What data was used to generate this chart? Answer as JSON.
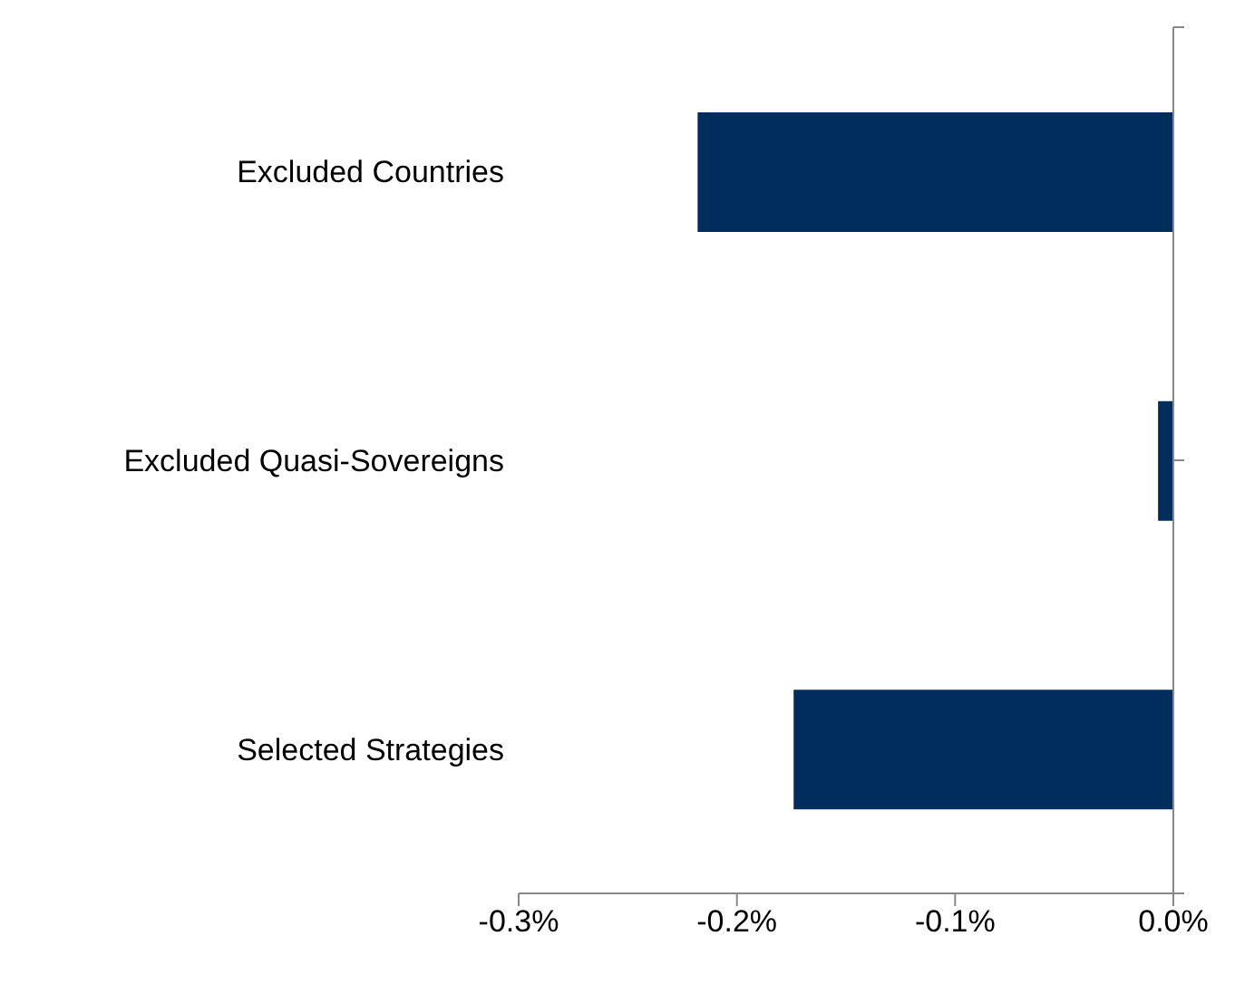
{
  "chart_data": {
    "type": "bar",
    "orientation": "horizontal",
    "categories": [
      "Excluded Countries",
      "Excluded Quasi-Sovereigns",
      "Selected Strategies"
    ],
    "values": [
      -0.218,
      -0.007,
      -0.174
    ],
    "color": "#002d5b",
    "xlim": [
      -0.3,
      0
    ],
    "xticks": [
      {
        "value": -0.3,
        "label": "-0.3%"
      },
      {
        "value": -0.2,
        "label": "-0.2%"
      },
      {
        "value": -0.1,
        "label": "-0.1%"
      },
      {
        "value": 0,
        "label": "0.0%"
      }
    ],
    "grid": false,
    "legend": false
  }
}
